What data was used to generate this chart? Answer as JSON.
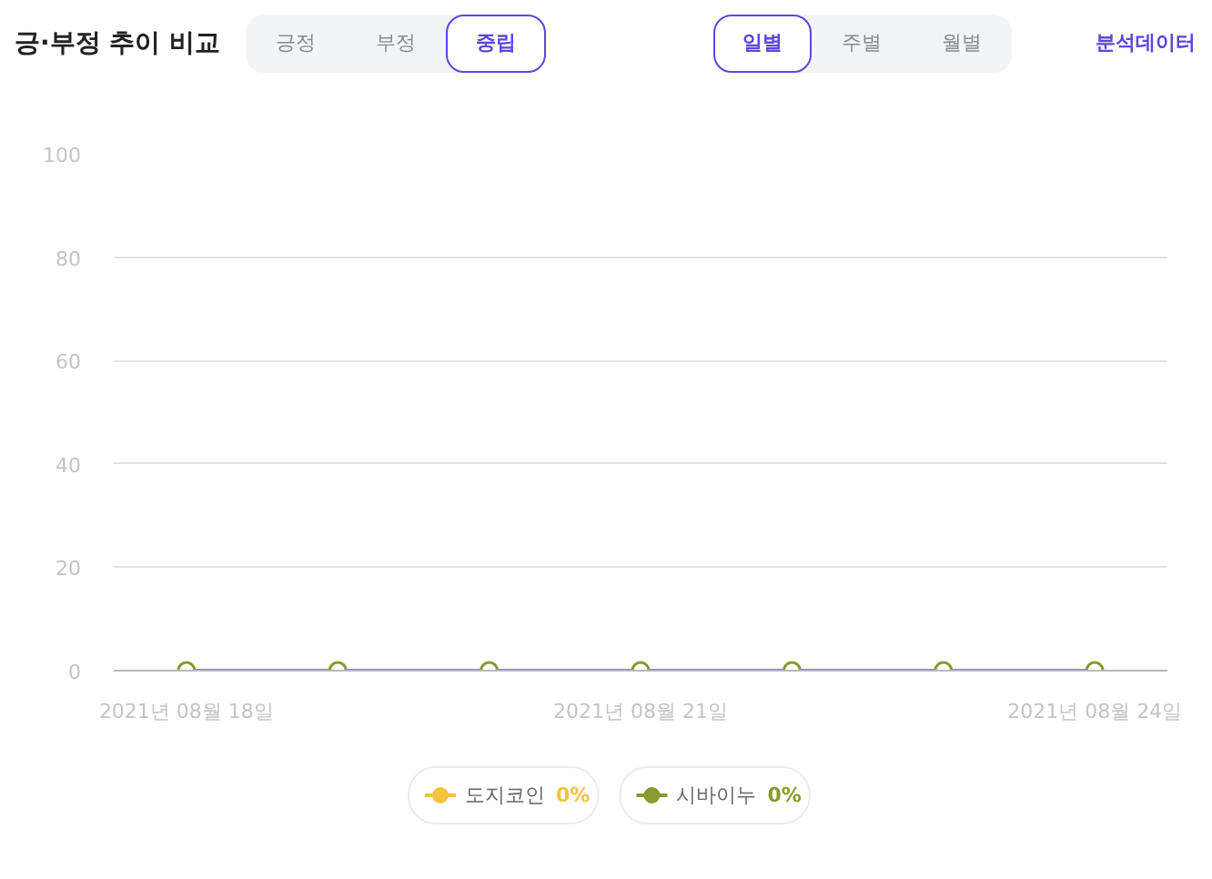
{
  "chart_data": {
    "type": "line",
    "title": "긍·부정 추이 비교",
    "annotations": [
      "긍정",
      "부정",
      "중립",
      "일별",
      "주별",
      "월별",
      "분석데이터"
    ],
    "categories": [
      "2021년 08월 18일",
      null,
      null,
      "2021년 08월 21일",
      null,
      null,
      "2021년 08월 24일"
    ],
    "series": [
      {
        "name": "도지코인 0%",
        "color": "#f5c242",
        "values": [
          null,
          null,
          null,
          null,
          null,
          null,
          null
        ]
      },
      {
        "name": "시바이누 0%",
        "color": "#8a9a2b",
        "values": [
          0,
          0,
          0,
          0,
          0,
          0,
          0
        ]
      }
    ],
    "ylim": [
      0,
      100
    ],
    "yticks": [
      0,
      20,
      40,
      60,
      80,
      100
    ],
    "grid": "y",
    "legend": "bottom",
    "marker": "circle",
    "line_style": "solid"
  }
}
